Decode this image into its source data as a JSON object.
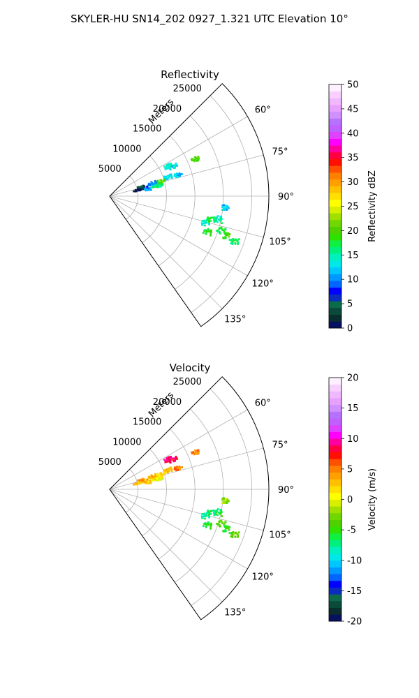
{
  "figure_title": "SKYLER-HU  SN14_202  0927_1.321 UTC Elevation 10°",
  "chart_data": [
    {
      "type": "polar-sector",
      "title": "Reflectivity",
      "radial_axis_label": "Meters",
      "radial_ticks": [
        5000,
        10000,
        15000,
        20000,
        25000
      ],
      "r_max": 28000,
      "angular_range_deg": [
        45,
        145
      ],
      "angular_ticks": [
        "60°",
        "75°",
        "90°",
        "105°",
        "120°",
        "135°"
      ],
      "angular_tick_values": [
        60,
        75,
        90,
        105,
        120,
        135
      ],
      "colorbar": {
        "label": "Reflectivity dBZ",
        "range": [
          0,
          50
        ],
        "ticks": [
          "0",
          "5",
          "10",
          "15",
          "20",
          "25",
          "30",
          "35",
          "40",
          "45",
          "50"
        ],
        "colors": [
          "#081060",
          "#0a2e2e",
          "#0a4a3a",
          "#0b6b4a",
          "#0a2cbf",
          "#0000ff",
          "#0066ff",
          "#0099ff",
          "#00c8ff",
          "#00e8e8",
          "#00f0c0",
          "#00f080",
          "#10f040",
          "#30e000",
          "#50d000",
          "#70d800",
          "#a0e000",
          "#d8f000",
          "#ffff00",
          "#ffe000",
          "#ffc000",
          "#ffa000",
          "#ff8000",
          "#ff5000",
          "#ff1000",
          "#ff0040",
          "#ff00a0",
          "#ff00ff",
          "#e040ff",
          "#c060ff",
          "#b870ff",
          "#d090ff",
          "#e8a0ff",
          "#f0b8ff",
          "#f8d0ff",
          "#fff0ff"
        ]
      },
      "echoes": [
        {
          "r": 8700,
          "az": 76,
          "value": 22
        },
        {
          "r": 9400,
          "az": 74,
          "value": 20
        },
        {
          "r": 8200,
          "az": 77,
          "value": 18
        },
        {
          "r": 7600,
          "az": 75,
          "value": 12
        },
        {
          "r": 8900,
          "az": 78,
          "value": 16
        },
        {
          "r": 10800,
          "az": 72,
          "value": 13
        },
        {
          "r": 6200,
          "az": 77,
          "value": 6
        },
        {
          "r": 5600,
          "az": 74,
          "value": 3
        },
        {
          "r": 6900,
          "az": 80,
          "value": 10
        },
        {
          "r": 5000,
          "az": 78,
          "value": 1
        },
        {
          "r": 7800,
          "az": 73,
          "value": 9
        },
        {
          "r": 11600,
          "az": 63,
          "value": 14
        },
        {
          "r": 12300,
          "az": 65,
          "value": 13
        },
        {
          "r": 12600,
          "az": 73,
          "value": 12
        },
        {
          "r": 16400,
          "az": 67,
          "value": 20
        },
        {
          "r": 18300,
          "az": 103,
          "value": 17
        },
        {
          "r": 17500,
          "az": 106,
          "value": 14
        },
        {
          "r": 19600,
          "az": 102,
          "value": 15
        },
        {
          "r": 20500,
          "az": 107,
          "value": 17
        },
        {
          "r": 21800,
          "az": 109,
          "value": 19
        },
        {
          "r": 23400,
          "az": 110,
          "value": 17
        },
        {
          "r": 20600,
          "az": 96,
          "value": 12
        },
        {
          "r": 18400,
          "az": 110,
          "value": 18
        }
      ]
    },
    {
      "type": "polar-sector",
      "title": "Velocity",
      "radial_axis_label": "Meters",
      "radial_ticks": [
        5000,
        10000,
        15000,
        20000,
        25000
      ],
      "r_max": 28000,
      "angular_range_deg": [
        45,
        145
      ],
      "angular_ticks": [
        "60°",
        "75°",
        "90°",
        "105°",
        "120°",
        "135°"
      ],
      "angular_tick_values": [
        60,
        75,
        90,
        105,
        120,
        135
      ],
      "colorbar": {
        "label": "Velocity (m/s)",
        "range": [
          -20,
          20
        ],
        "ticks": [
          "-20",
          "-15",
          "-10",
          "-5",
          "0",
          "5",
          "10",
          "15",
          "20"
        ],
        "colors": [
          "#081060",
          "#0a2e2e",
          "#0a4a3a",
          "#0b6b4a",
          "#0a2cbf",
          "#0000ff",
          "#0066ff",
          "#0099ff",
          "#00c8ff",
          "#00e8e8",
          "#00f0c0",
          "#00f080",
          "#10f040",
          "#30e000",
          "#50d000",
          "#70d800",
          "#a0e000",
          "#d8f000",
          "#ffff00",
          "#ffe000",
          "#ffc000",
          "#ffa000",
          "#ff8000",
          "#ff5000",
          "#ff1000",
          "#ff0040",
          "#ff00a0",
          "#ff00ff",
          "#e040ff",
          "#c060ff",
          "#b870ff",
          "#d090ff",
          "#e8a0ff",
          "#f0b8ff",
          "#f8d0ff",
          "#fff0ff"
        ]
      },
      "echoes": [
        {
          "r": 8700,
          "az": 76,
          "value": 1
        },
        {
          "r": 9400,
          "az": 74,
          "value": 2
        },
        {
          "r": 8200,
          "az": 77,
          "value": 1
        },
        {
          "r": 7600,
          "az": 75,
          "value": 2
        },
        {
          "r": 8900,
          "az": 78,
          "value": 0
        },
        {
          "r": 10800,
          "az": 72,
          "value": 3
        },
        {
          "r": 6200,
          "az": 77,
          "value": 3
        },
        {
          "r": 5600,
          "az": 74,
          "value": 4
        },
        {
          "r": 6900,
          "az": 80,
          "value": 2
        },
        {
          "r": 5000,
          "az": 78,
          "value": 3
        },
        {
          "r": 7800,
          "az": 73,
          "value": 3
        },
        {
          "r": 11600,
          "az": 63,
          "value": 9
        },
        {
          "r": 12300,
          "az": 65,
          "value": 8
        },
        {
          "r": 12600,
          "az": 73,
          "value": 5
        },
        {
          "r": 16400,
          "az": 67,
          "value": 5
        },
        {
          "r": 18300,
          "az": 103,
          "value": -7
        },
        {
          "r": 17500,
          "az": 106,
          "value": -8
        },
        {
          "r": 19600,
          "az": 102,
          "value": -6
        },
        {
          "r": 20500,
          "az": 107,
          "value": -4
        },
        {
          "r": 21800,
          "az": 109,
          "value": -5
        },
        {
          "r": 23400,
          "az": 110,
          "value": -3
        },
        {
          "r": 20600,
          "az": 96,
          "value": -2
        },
        {
          "r": 18400,
          "az": 110,
          "value": -6
        }
      ]
    }
  ]
}
